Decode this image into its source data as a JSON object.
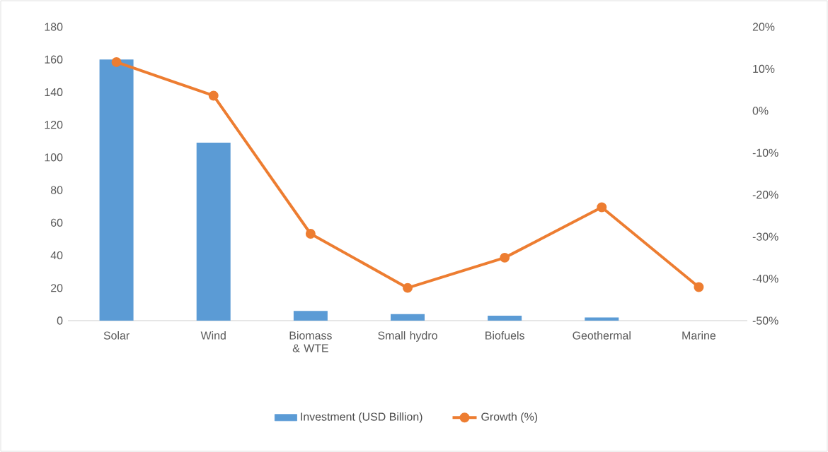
{
  "chart_data": {
    "type": "bar",
    "categories": [
      "Solar",
      "Wind",
      "Biomass & WTE",
      "Small hydro",
      "Biofuels",
      "Geothermal",
      "Marine"
    ],
    "series": [
      {
        "name": "Investment (USD Billion)",
        "color": "#5b9bd5",
        "values": [
          160,
          109,
          6,
          4,
          3,
          2,
          0
        ]
      },
      {
        "name": "Growth (%)",
        "color": "#ed7d31",
        "type": "line",
        "axis": "y2",
        "marker": "circle",
        "values": [
          11.6,
          3.6,
          -29.3,
          -42.2,
          -35,
          -23,
          -42
        ]
      }
    ],
    "ylim": [
      0,
      180
    ],
    "yticks": [
      0,
      20,
      40,
      60,
      80,
      100,
      120,
      140,
      160,
      180
    ],
    "y2lim": [
      -50,
      20
    ],
    "y2ticks": [
      {
        "value": -50,
        "label": "-50%"
      },
      {
        "value": -40,
        "label": "-40%"
      },
      {
        "value": -30,
        "label": "-30%"
      },
      {
        "value": -20,
        "label": "-20%"
      },
      {
        "value": -10,
        "label": "-10%"
      },
      {
        "value": 0,
        "label": "0%"
      },
      {
        "value": 10,
        "label": "10%"
      },
      {
        "value": 20,
        "label": "20%"
      }
    ],
    "legend": "bottom"
  }
}
